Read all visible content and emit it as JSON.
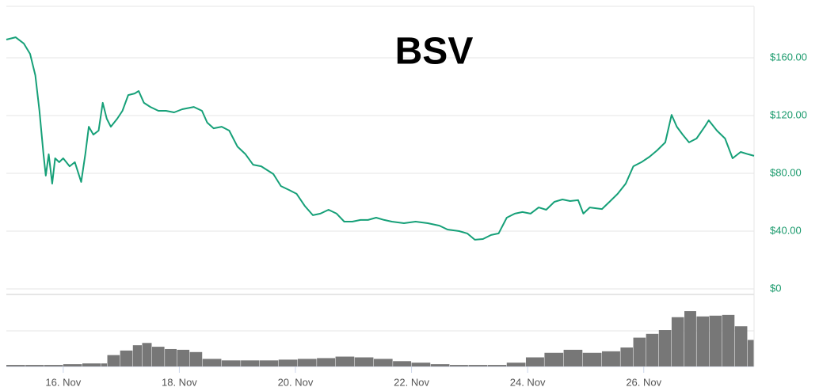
{
  "chart_data": [
    {
      "type": "line",
      "title": "BSV",
      "color": "#16a078",
      "x": [
        15.02,
        15.18,
        15.32,
        15.43,
        15.52,
        15.59,
        15.66,
        15.7,
        15.75,
        15.81,
        15.86,
        15.93,
        16.0,
        16.11,
        16.2,
        16.31,
        16.38,
        16.44,
        16.52,
        16.61,
        16.68,
        16.75,
        16.82,
        16.93,
        17.02,
        17.12,
        17.23,
        17.3,
        17.39,
        17.5,
        17.64,
        17.77,
        17.91,
        18.05,
        18.25,
        18.39,
        18.48,
        18.59,
        18.73,
        18.86,
        19.0,
        19.14,
        19.27,
        19.41,
        19.62,
        19.75,
        19.89,
        20.02,
        20.16,
        20.3,
        20.43,
        20.57,
        20.71,
        20.84,
        20.98,
        21.12,
        21.25,
        21.39,
        21.53,
        21.66,
        21.87,
        22.07,
        22.28,
        22.48,
        22.62,
        22.82,
        22.96,
        23.09,
        23.23,
        23.37,
        23.5,
        23.64,
        23.78,
        23.91,
        24.05,
        24.19,
        24.32,
        24.46,
        24.6,
        24.73,
        24.87,
        24.96,
        25.07,
        25.28,
        25.41,
        25.55,
        25.69,
        25.82,
        25.96,
        26.1,
        26.23,
        26.37,
        26.48,
        26.57,
        26.67,
        26.78,
        26.91,
        27.05,
        27.12,
        27.26,
        27.4,
        27.53,
        27.67,
        27.8,
        27.9
      ],
      "values": [
        172.6,
        174.2,
        169.9,
        162.7,
        147.9,
        123.3,
        93.2,
        78.4,
        93.2,
        72.9,
        90.4,
        87.7,
        90.4,
        84.9,
        87.7,
        74.0,
        93.2,
        112.3,
        106.8,
        109.6,
        128.8,
        117.8,
        112.3,
        117.8,
        123.3,
        134.2,
        135.3,
        137.0,
        128.8,
        126.0,
        123.3,
        123.3,
        122.2,
        124.4,
        126.0,
        123.3,
        115.1,
        111.2,
        112.3,
        109.6,
        98.6,
        93.2,
        86.0,
        84.9,
        79.5,
        71.2,
        68.5,
        65.8,
        57.5,
        51.0,
        52.1,
        54.8,
        52.1,
        46.6,
        46.6,
        47.7,
        47.7,
        49.3,
        47.7,
        46.6,
        45.5,
        46.6,
        45.5,
        43.8,
        41.1,
        40.0,
        38.4,
        34.0,
        34.5,
        37.3,
        38.4,
        49.3,
        52.1,
        53.2,
        52.1,
        56.4,
        54.8,
        60.3,
        61.9,
        60.8,
        61.4,
        52.1,
        56.4,
        55.3,
        60.3,
        65.8,
        72.9,
        84.9,
        87.7,
        91.5,
        95.9,
        101.4,
        120.5,
        112.3,
        106.8,
        101.4,
        104.1,
        112.3,
        116.7,
        109.6,
        104.1,
        90.4,
        94.8,
        93.2,
        92.1
      ],
      "xlim": [
        15.02,
        27.9
      ],
      "ylim": [
        0,
        200
      ],
      "yticks": [
        {
          "value": 0,
          "label": "$0"
        },
        {
          "value": 40,
          "label": "$40.00"
        },
        {
          "value": 80,
          "label": "$80.00"
        },
        {
          "value": 120,
          "label": "$120.00"
        },
        {
          "value": 160,
          "label": "$160.00"
        }
      ],
      "grid": true
    },
    {
      "type": "bar",
      "color": "#777777",
      "x": [
        15.02,
        15.35,
        15.67,
        16.0,
        16.33,
        16.65,
        16.76,
        16.98,
        17.2,
        17.36,
        17.53,
        17.75,
        17.96,
        18.18,
        18.4,
        18.73,
        19.06,
        19.38,
        19.71,
        20.04,
        20.37,
        20.69,
        21.02,
        21.35,
        21.68,
        22.0,
        22.33,
        22.66,
        22.98,
        23.31,
        23.64,
        23.97,
        24.29,
        24.62,
        24.95,
        25.28,
        25.6,
        25.82,
        26.04,
        26.26,
        26.48,
        26.7,
        26.91,
        27.13,
        27.35,
        27.57,
        27.79
      ],
      "values": [
        2,
        2,
        2,
        3,
        4,
        4,
        15,
        21,
        28,
        31,
        26,
        23,
        22,
        19,
        10,
        8,
        8,
        8,
        9,
        10,
        11,
        13,
        12,
        10,
        7,
        5,
        3,
        2,
        2,
        2,
        5,
        12,
        18,
        22,
        18,
        20,
        25,
        38,
        43,
        48,
        65,
        73,
        66,
        67,
        68,
        53,
        35
      ],
      "xlim": [
        15.02,
        27.9
      ],
      "ylim": [
        0,
        95
      ],
      "xticks": [
        {
          "value": 16,
          "label": "16. Nov"
        },
        {
          "value": 18,
          "label": "18. Nov"
        },
        {
          "value": 20,
          "label": "20. Nov"
        },
        {
          "value": 22,
          "label": "22. Nov"
        },
        {
          "value": 24,
          "label": "24. Nov"
        },
        {
          "value": 26,
          "label": "26. Nov"
        }
      ]
    }
  ]
}
